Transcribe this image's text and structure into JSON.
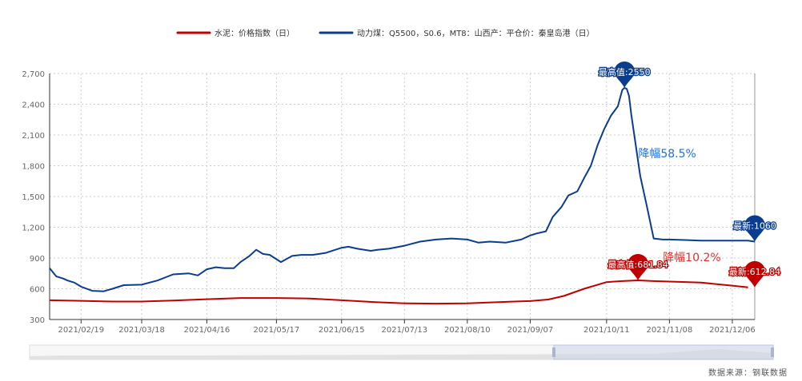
{
  "chart_data": {
    "type": "line",
    "series": [
      {
        "name": "水泥：价格指数（日）",
        "color": "#c00000",
        "x": [
          "2021-02-05",
          "2021-02-19",
          "2021-03-05",
          "2021-03-18",
          "2021-04-01",
          "2021-04-16",
          "2021-05-01",
          "2021-05-17",
          "2021-06-01",
          "2021-06-15",
          "2021-06-30",
          "2021-07-13",
          "2021-07-27",
          "2021-08-10",
          "2021-08-24",
          "2021-09-07",
          "2021-09-15",
          "2021-09-22",
          "2021-10-01",
          "2021-10-11",
          "2021-10-18",
          "2021-10-25",
          "2021-11-01",
          "2021-11-08",
          "2021-11-22",
          "2021-12-06",
          "2021-12-13"
        ],
        "y": [
          488,
          482,
          475,
          475,
          485,
          498,
          510,
          510,
          505,
          488,
          470,
          458,
          455,
          458,
          470,
          480,
          495,
          530,
          600,
          665,
          675,
          682,
          675,
          670,
          660,
          630,
          613
        ]
      },
      {
        "name": "动力煤：Q5500，S0.6，MT8：山西产：平仓价：秦皇岛港（日）",
        "color": "#0a3d8f",
        "x": [
          "2021-02-05",
          "2021-02-08",
          "2021-02-11",
          "2021-02-13",
          "2021-02-16",
          "2021-02-19",
          "2021-02-24",
          "2021-03-01",
          "2021-03-05",
          "2021-03-10",
          "2021-03-18",
          "2021-03-25",
          "2021-04-01",
          "2021-04-08",
          "2021-04-12",
          "2021-04-16",
          "2021-04-20",
          "2021-04-24",
          "2021-04-28",
          "2021-05-01",
          "2021-05-05",
          "2021-05-08",
          "2021-05-11",
          "2021-05-14",
          "2021-05-19",
          "2021-05-24",
          "2021-05-28",
          "2021-06-02",
          "2021-06-08",
          "2021-06-15",
          "2021-06-18",
          "2021-06-22",
          "2021-06-28",
          "2021-07-01",
          "2021-07-06",
          "2021-07-13",
          "2021-07-20",
          "2021-07-27",
          "2021-08-03",
          "2021-08-10",
          "2021-08-15",
          "2021-08-20",
          "2021-08-27",
          "2021-09-03",
          "2021-09-07",
          "2021-09-10",
          "2021-09-14",
          "2021-09-17",
          "2021-09-21",
          "2021-09-24",
          "2021-09-28",
          "2021-10-01",
          "2021-10-04",
          "2021-10-07",
          "2021-10-10",
          "2021-10-13",
          "2021-10-16",
          "2021-10-18",
          "2021-10-19",
          "2021-10-20",
          "2021-10-21",
          "2021-10-22",
          "2021-10-26",
          "2021-10-29",
          "2021-11-01",
          "2021-11-05",
          "2021-11-08",
          "2021-11-15",
          "2021-11-22",
          "2021-11-29",
          "2021-12-06",
          "2021-12-13",
          "2021-12-16"
        ],
        "y": [
          800,
          720,
          700,
          680,
          660,
          620,
          580,
          575,
          600,
          635,
          640,
          680,
          740,
          750,
          730,
          790,
          810,
          800,
          800,
          860,
          920,
          980,
          940,
          930,
          860,
          920,
          930,
          930,
          950,
          1000,
          1010,
          990,
          970,
          980,
          990,
          1020,
          1060,
          1080,
          1090,
          1080,
          1050,
          1060,
          1050,
          1080,
          1120,
          1140,
          1160,
          1300,
          1400,
          1510,
          1550,
          1680,
          1800,
          2000,
          2160,
          2290,
          2380,
          2540,
          2560,
          2550,
          2480,
          2300,
          1700,
          1400,
          1090,
          1080,
          1080,
          1075,
          1070,
          1070,
          1070,
          1070,
          1060
        ]
      }
    ],
    "xticks": [
      "2021/02/19",
      "2021/03/18",
      "2021/04/16",
      "2021/05/17",
      "2021/06/15",
      "2021/07/13",
      "2021/08/10",
      "2021/09/07",
      "2021/10/11",
      "2021/11/08",
      "2021/12/06"
    ],
    "xlim": [
      "2021-02-05",
      "2021-12-16"
    ],
    "yticks": [
      "300",
      "600",
      "900",
      "1,200",
      "1,500",
      "1,800",
      "2,100",
      "2,400",
      "2,700"
    ],
    "ylim": [
      300,
      2700
    ],
    "grid": true,
    "legend_position": "top-center",
    "markers": [
      {
        "label": "最高值:2550",
        "x": "2021-10-19",
        "y": 2560,
        "series": 1
      },
      {
        "label": "最新:1060",
        "x": "2021-12-16",
        "y": 1060,
        "series": 1
      },
      {
        "label": "最高值:681.84",
        "x": "2021-10-25",
        "y": 682,
        "series": 0
      },
      {
        "label": "最新:612.84",
        "x": "2021-12-16",
        "y": 613,
        "series": 0
      }
    ],
    "annotations": [
      {
        "text": "降幅58.5%",
        "color": "#1e6fd9",
        "x": "2021-11-07",
        "y": 1880
      },
      {
        "text": "降幅10.2%",
        "color": "#e03030",
        "x": "2021-11-18",
        "y": 870
      }
    ]
  },
  "source": "数据来源：钢联数据"
}
